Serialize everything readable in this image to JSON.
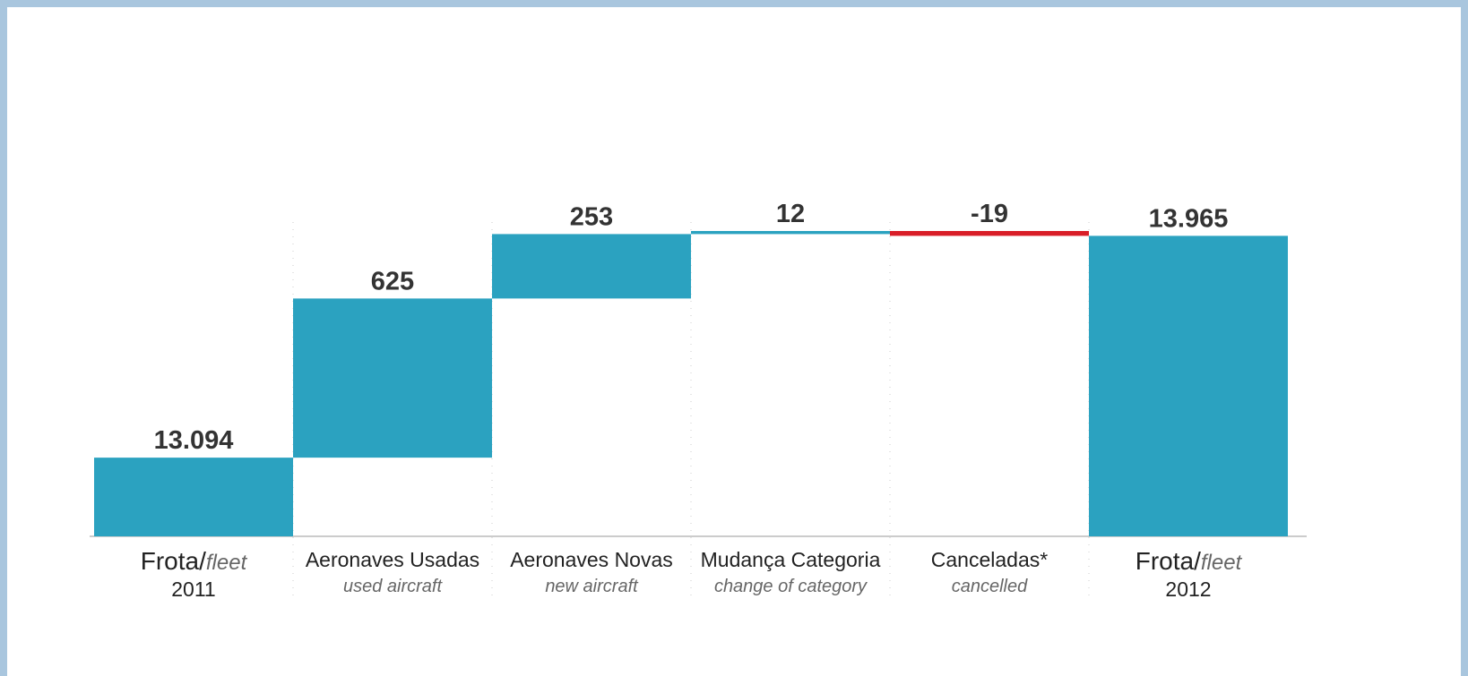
{
  "chart_data": {
    "type": "bar",
    "subtype": "waterfall",
    "title": "",
    "xlabel": "",
    "ylabel": "",
    "ylim": [
      12785,
      14007
    ],
    "grid": false,
    "legend": "none",
    "categories": [
      {
        "label_pt": "Frota/",
        "label_en": "fleet",
        "year": "2011",
        "kind": "total",
        "value": 13094,
        "display": "13.094"
      },
      {
        "label_pt": "Aeronaves Usadas",
        "label_en": "used aircraft",
        "kind": "delta",
        "value": 625,
        "display": "625"
      },
      {
        "label_pt": "Aeronaves Novas",
        "label_en": "new aircraft",
        "kind": "delta",
        "value": 253,
        "display": "253"
      },
      {
        "label_pt": "Mudança Categoria",
        "label_en": "change of category",
        "kind": "delta",
        "value": 12,
        "display": "12"
      },
      {
        "label_pt": "Canceladas*",
        "label_en": "cancelled",
        "kind": "delta",
        "value": -19,
        "display": "-19"
      },
      {
        "label_pt": "Frota/",
        "label_en": "fleet",
        "year": "2012",
        "kind": "total",
        "value": 13965,
        "display": "13.965"
      }
    ],
    "colors": {
      "positive": "#2ba2c0",
      "negative": "#d91e28",
      "axis": "#bbbbbb",
      "separator": "#cccccc"
    }
  }
}
